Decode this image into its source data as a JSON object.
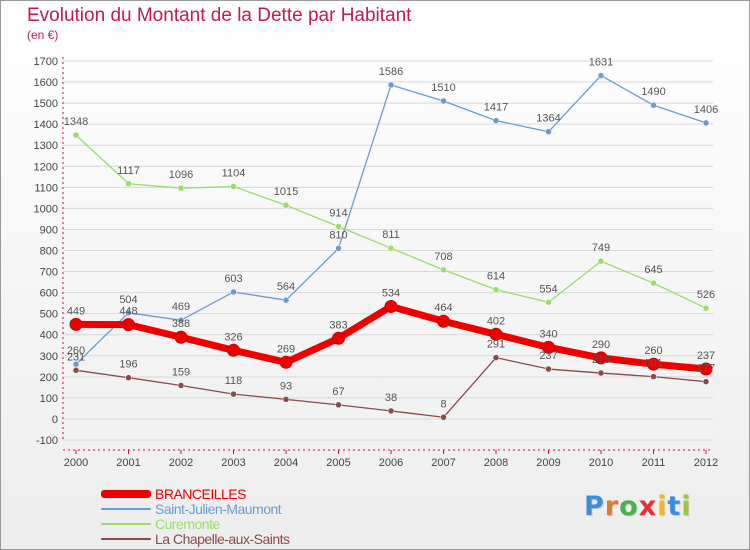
{
  "header": {
    "title": "Evolution du Montant de la Dette par Habitant",
    "subtitle": "(en €)"
  },
  "colors": {
    "title": "#c2185b",
    "axis": "#e0003c",
    "grid": "#d8d8d8"
  },
  "chart_data": {
    "type": "line",
    "title": "Evolution du Montant de la Dette par Habitant",
    "ylabel": "(en €)",
    "xlabel": "",
    "x": [
      "2000",
      "2001",
      "2002",
      "2003",
      "2004",
      "2005",
      "2006",
      "2007",
      "2008",
      "2009",
      "2010",
      "2011",
      "2012"
    ],
    "ylim": [
      -100,
      1700
    ],
    "yticks": [
      -100,
      0,
      100,
      200,
      300,
      400,
      500,
      600,
      700,
      800,
      900,
      1000,
      1100,
      1200,
      1300,
      1400,
      1500,
      1600,
      1700
    ],
    "grid": true,
    "legend_position": "bottom-left",
    "series": [
      {
        "name": "BRANCEILLES",
        "color": "#ee0000",
        "values": [
          449,
          448,
          388,
          326,
          269,
          383,
          534,
          464,
          402,
          340,
          290,
          260,
          237
        ]
      },
      {
        "name": "Saint-Julien-Maumont",
        "color": "#6b9bd1",
        "values": [
          260,
          504,
          469,
          603,
          564,
          810,
          1586,
          1510,
          1417,
          1364,
          1631,
          1490,
          1406
        ]
      },
      {
        "name": "Curemonte",
        "color": "#99dd66",
        "values": [
          1348,
          1117,
          1096,
          1104,
          1015,
          914,
          811,
          708,
          614,
          554,
          749,
          645,
          526
        ]
      },
      {
        "name": "La Chapelle-aux-Saints",
        "color": "#8b4a4a",
        "values": [
          231,
          196,
          159,
          118,
          93,
          67,
          38,
          8,
          291,
          237,
          218,
          201,
          177
        ]
      }
    ]
  },
  "logo": {
    "letters": [
      "P",
      "r",
      "o",
      "x",
      "i",
      "t",
      "i"
    ],
    "colors": [
      "#3a8fd8",
      "#e07a2e",
      "#4caf50",
      "#e0342e",
      "#f2b81c",
      "#3a8fd8",
      "#9bc83c"
    ]
  }
}
